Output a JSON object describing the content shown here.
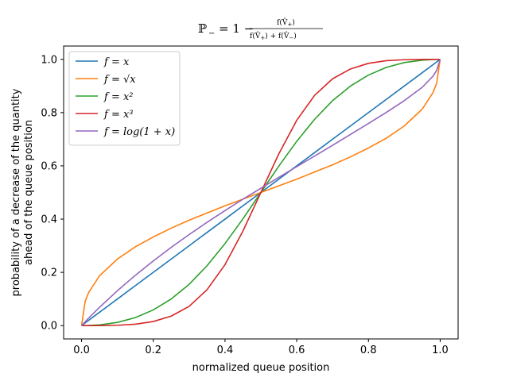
{
  "chart_data": {
    "type": "line",
    "title": {
      "lhs": "ℙ",
      "lhs_sub": "−",
      "eq": "= 1 −",
      "numerator": "f(V̂",
      "numerator_sub": "+",
      "numerator_close": ")",
      "denominator_a": "f(V̂",
      "denominator_a_sub": "+",
      "denominator_mid": ") + f(V̂",
      "denominator_b_sub": "−",
      "denominator_close": ")"
    },
    "xlabel": "normalized queue position",
    "ylabel": [
      "probability of a decrease of the quantity",
      "ahead of the queue position"
    ],
    "xlim": [
      -0.05,
      1.05
    ],
    "ylim": [
      -0.05,
      1.05
    ],
    "xticks": [
      0.0,
      0.2,
      0.4,
      0.6,
      0.8,
      1.0
    ],
    "yticks": [
      0.0,
      0.2,
      0.4,
      0.6,
      0.8,
      1.0
    ],
    "xtick_labels": [
      "0.0",
      "0.2",
      "0.4",
      "0.6",
      "0.8",
      "1.0"
    ],
    "ytick_labels": [
      "0.0",
      "0.2",
      "0.4",
      "0.6",
      "0.8",
      "1.0"
    ],
    "grid": false,
    "legend_position": "top-left",
    "x": [
      0,
      0.01,
      0.02,
      0.05,
      0.1,
      0.15,
      0.2,
      0.25,
      0.3,
      0.35,
      0.4,
      0.45,
      0.5,
      0.55,
      0.6,
      0.65,
      0.7,
      0.75,
      0.8,
      0.85,
      0.9,
      0.95,
      0.98,
      0.99,
      1.0
    ],
    "series": [
      {
        "name": "f = x",
        "color": "#1f77b4",
        "values": [
          0,
          0.01,
          0.02,
          0.05,
          0.1,
          0.15,
          0.2,
          0.25,
          0.3,
          0.35,
          0.4,
          0.45,
          0.5,
          0.55,
          0.6,
          0.65,
          0.7,
          0.75,
          0.8,
          0.85,
          0.9,
          0.95,
          0.98,
          0.99,
          1.0
        ]
      },
      {
        "name": "f = √x",
        "color": "#ff7f0e",
        "values": [
          0,
          0.091,
          0.125,
          0.187,
          0.25,
          0.296,
          0.333,
          0.366,
          0.396,
          0.423,
          0.45,
          0.475,
          0.5,
          0.525,
          0.55,
          0.577,
          0.604,
          0.634,
          0.667,
          0.704,
          0.75,
          0.813,
          0.875,
          0.909,
          1.0
        ]
      },
      {
        "name": "f = x²",
        "color": "#2ca02c",
        "values": [
          0,
          0.0001,
          0.0004,
          0.0028,
          0.012,
          0.03,
          0.059,
          0.1,
          0.155,
          0.225,
          0.308,
          0.401,
          0.5,
          0.599,
          0.692,
          0.775,
          0.845,
          0.9,
          0.941,
          0.97,
          0.988,
          0.997,
          0.9996,
          0.9999,
          1.0
        ]
      },
      {
        "name": "f = x³",
        "color": "#d62728",
        "values": [
          0,
          1e-06,
          8e-06,
          0.000145,
          0.0014,
          0.0054,
          0.0154,
          0.0357,
          0.0725,
          0.135,
          0.229,
          0.355,
          0.5,
          0.645,
          0.771,
          0.865,
          0.927,
          0.964,
          0.985,
          0.995,
          0.9986,
          0.9999,
          1.0,
          1.0,
          1.0
        ]
      },
      {
        "name": "f = log(1 + x)",
        "color": "#9467bd",
        "values": [
          0,
          0.0143,
          0.0283,
          0.0686,
          0.131,
          0.189,
          0.243,
          0.294,
          0.342,
          0.388,
          0.432,
          0.475,
          0.516,
          0.557,
          0.597,
          0.637,
          0.677,
          0.718,
          0.759,
          0.801,
          0.845,
          0.895,
          0.937,
          0.958,
          1.0
        ]
      }
    ]
  }
}
